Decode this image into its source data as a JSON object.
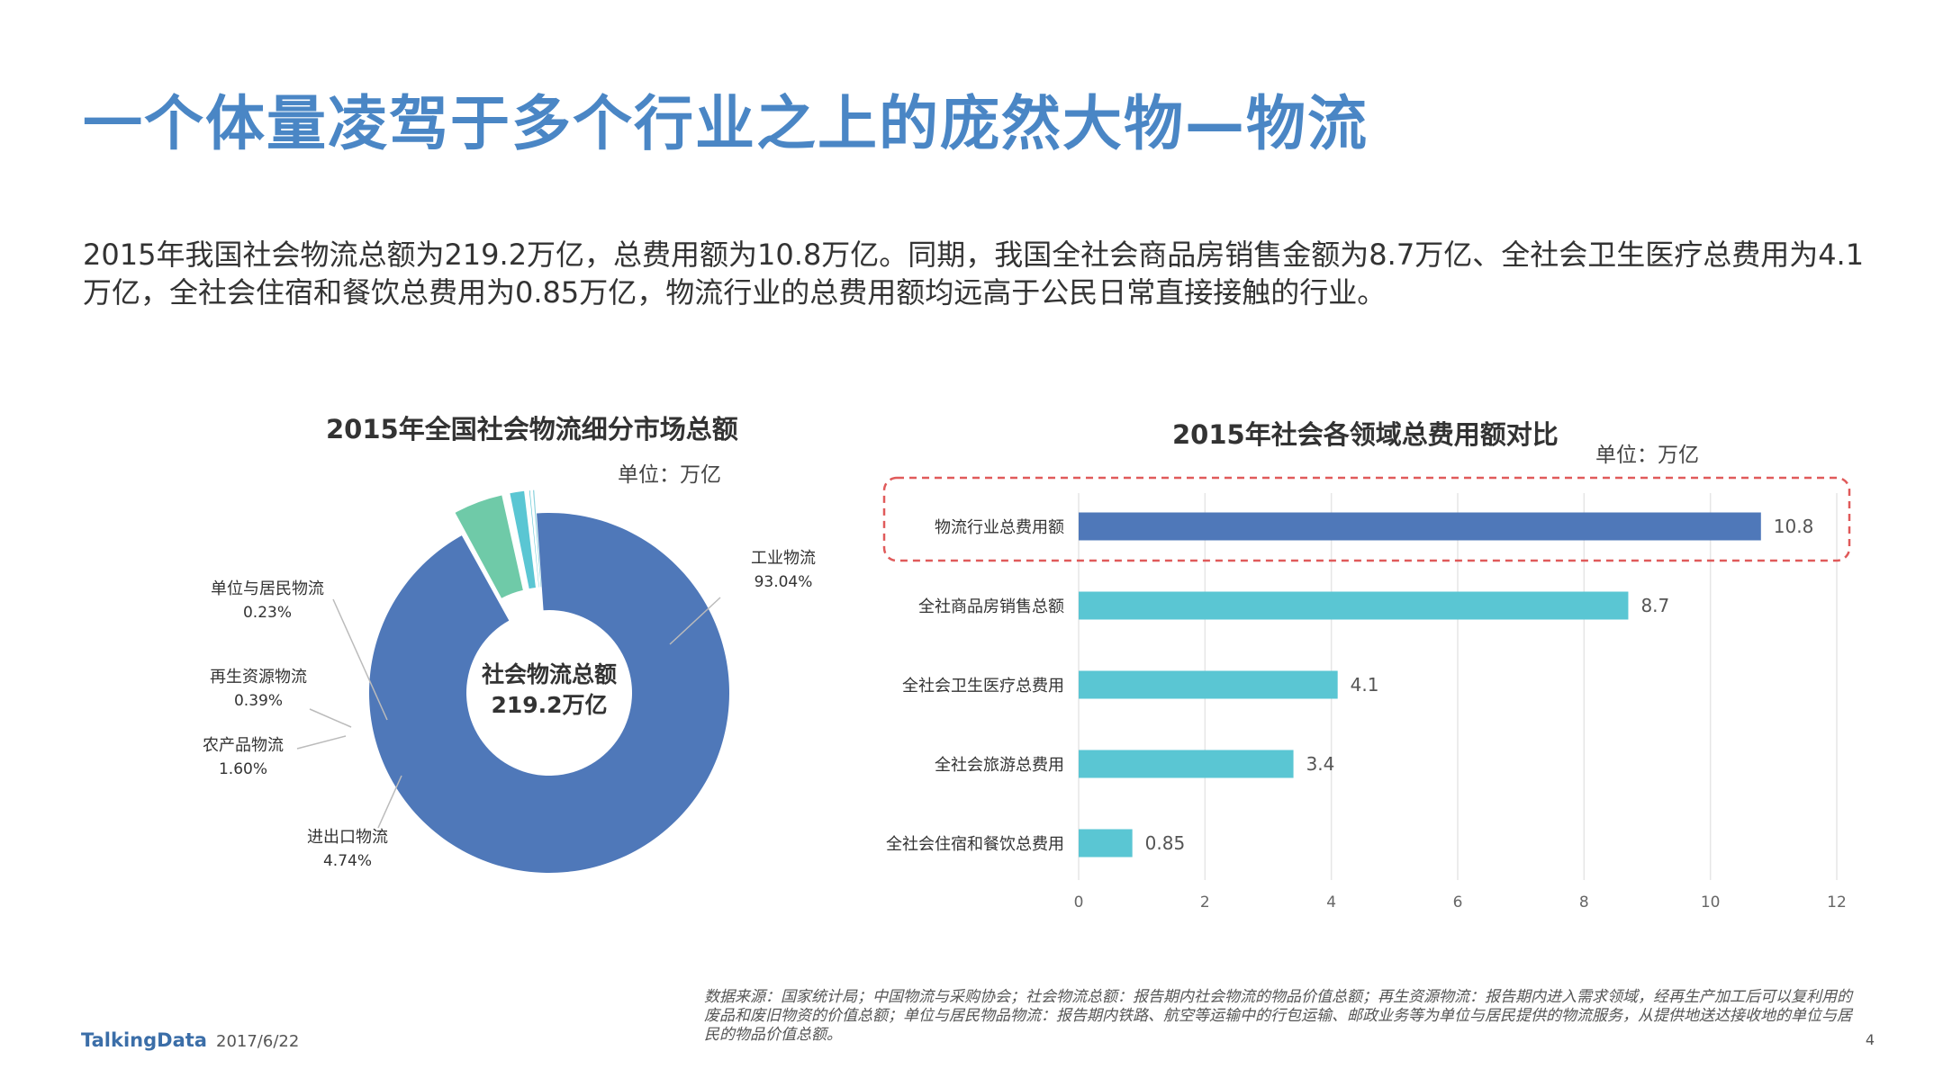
{
  "title": "一个体量凌驾于多个行业之上的庞然大物—物流",
  "intro": "2015年我国社会物流总额为219.2万亿，总费用额为10.8万亿。同期，我国全社会商品房销售金额为8.7万亿、全社会卫生医疗总费用为4.1万亿，全社会住宿和餐饮总费用为0.85万亿，物流行业的总费用额均远高于公民日常直接接触的行业。",
  "colors": {
    "title": "#4a86c5",
    "donut_main": "#4f78b9",
    "teal": "#5ac6d3",
    "green": "#6fcaa8",
    "bar_main": "#4f78b9",
    "highlight": "#e05a5a"
  },
  "chart_data": [
    {
      "type": "pie",
      "title": "2015年全国社会物流细分市场总额",
      "unit": "单位：万亿",
      "center_label": [
        "社会物流总额",
        "219.2万亿"
      ],
      "categories": [
        "工业物流",
        "进出口物流",
        "农产品物流",
        "再生资源物流",
        "单位与居民物流"
      ],
      "values": [
        93.04,
        4.74,
        1.6,
        0.39,
        0.23
      ],
      "value_labels": [
        "93.04%",
        "4.74%",
        "1.60%",
        "0.39%",
        "0.23%"
      ]
    },
    {
      "type": "bar",
      "orientation": "horizontal",
      "title": "2015年社会各领域总费用额对比",
      "unit": "单位：万亿",
      "categories": [
        "物流行业总费用额",
        "全社商品房销售总额",
        "全社会卫生医疗总费用",
        "全社会旅游总费用",
        "全社会住宿和餐饮总费用"
      ],
      "values": [
        10.8,
        8.7,
        4.1,
        3.4,
        0.85
      ],
      "value_labels": [
        "10.8",
        "8.7",
        "4.1",
        "3.4",
        "0.85"
      ],
      "xlim": [
        0,
        12
      ],
      "xticks": [
        "0",
        "2",
        "4",
        "6",
        "8",
        "10",
        "12"
      ],
      "grid": true,
      "highlight_index": 0
    }
  ],
  "footer": {
    "source": "数据来源：国家统计局；中国物流与采购协会；社会物流总额：报告期内社会物流的物品价值总额；再生资源物流：报告期内进入需求领域，经再生产加工后可以复利用的废品和废旧物资的价值总额；单位与居民物品物流：报告期内铁路、航空等运输中的行包运输、邮政业务等为单位与居民提供的物流服务，从提供地送达接收地的单位与居民的物品价值总额。",
    "logo": "TalkingData",
    "date": "2017/6/22",
    "page": "4"
  }
}
